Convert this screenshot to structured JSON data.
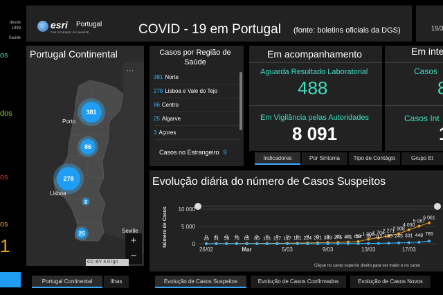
{
  "left_sliver": {
    "text_lines": [
      "desde",
      "1899",
      "Saúde"
    ],
    "label_os": "os",
    "label_dos": "dos",
    "label_os2": "os",
    "big_digit": "1"
  },
  "header": {
    "brand": "esri",
    "brand_country": "Portugal",
    "brand_tagline": "THE SCIENCE OF WHERE",
    "title": "COVID - 19 em Portugal",
    "source": "(fonte: boletins oficiais da DGS)",
    "date_partial": "19/3"
  },
  "map": {
    "title": "Portugal Continental",
    "more_label": "···",
    "clusters": [
      {
        "label": "381"
      },
      {
        "label": "86"
      },
      {
        "label": "278"
      },
      {
        "label": "2"
      },
      {
        "label": "25"
      }
    ],
    "cities": [
      "Porto",
      "Lisboa",
      "Seville"
    ],
    "zoom_in": "+",
    "zoom_out": "−",
    "attribution": "CC BY 4.0 ign",
    "tabs": [
      "Portugal Continental",
      "Ilhas"
    ]
  },
  "regions": {
    "title": "Casos por Região de Saúde",
    "items": [
      {
        "count": "381",
        "name": "Norte"
      },
      {
        "count": "278",
        "name": "Lisboa e Vale do Tejo"
      },
      {
        "count": "86",
        "name": "Centro"
      },
      {
        "count": "25",
        "name": "Algarve"
      },
      {
        "count": "3",
        "name": "Açores"
      }
    ],
    "abroad_label": "Casos no Estrangeiro",
    "abroad_count": "9"
  },
  "acompanhamento": {
    "heading": "Em acompanhamento",
    "item1_label": "Aguarda Resultado Laboratorial",
    "item1_value": "488",
    "item2_label": "Em Vigilância pelas Autoridades",
    "item2_value": "8 091"
  },
  "internados": {
    "heading": "Em inte",
    "item1_label": "Casos",
    "item1_value": "8",
    "item2_label": "Casos Int",
    "item2_value": "1"
  },
  "indicator_tabs": [
    "Indicadores",
    "Por Sintoma",
    "Tipo de Contágio",
    "Grupo Et"
  ],
  "evolution": {
    "title": "Evolução diária do número de Casos Suspeitos",
    "note": "Clique no canto superior direito para ver maior e no canto",
    "tabs": [
      "Evolução de Casos Suspeitos",
      "Evolução de Casos Confirmados",
      "Evolução de Casos Novos"
    ],
    "colors": {
      "suspeitos": "#f0a020",
      "confirmados": "#39b4ff"
    }
  },
  "chart_data": {
    "type": "line",
    "title": "Evolução diária do número de Casos Suspeitos",
    "ylabel": "Número de Casos",
    "xlabel": "",
    "ylim": [
      0,
      10000
    ],
    "yticks": [
      "0",
      "5 000",
      "10 000"
    ],
    "xticks": [
      "26/02",
      "Mar",
      "5/03",
      "9/03",
      "13/03",
      "17/03"
    ],
    "series": [
      {
        "name": "",
        "color": "#f0a020",
        "labels": [
          "25",
          "51",
          "59",
          "70",
          "85",
          "85",
          "101",
          "117",
          "147",
          "181",
          "224",
          "281",
          "339",
          "375",
          "471",
          "637",
          "1 308",
          "1 704",
          "2 271",
          "2 908",
          "4 030",
          "5 067",
          "6 061"
        ],
        "values": [
          25,
          51,
          59,
          70,
          85,
          85,
          101,
          117,
          147,
          181,
          224,
          281,
          339,
          375,
          471,
          637,
          1308,
          1704,
          2271,
          2908,
          4030,
          5067,
          6061
        ]
      },
      {
        "name": "",
        "color": "#39b4ff",
        "labels": [
          "0",
          "0",
          "0",
          "0",
          "0",
          "0",
          "0",
          "0",
          "0",
          "0",
          "0",
          "0",
          "0",
          "30",
          "41",
          "59",
          "78",
          "112",
          "169",
          "245",
          "331",
          "448",
          "785"
        ],
        "values": [
          0,
          0,
          0,
          0,
          0,
          0,
          0,
          0,
          0,
          0,
          0,
          0,
          0,
          30,
          41,
          59,
          78,
          112,
          169,
          245,
          331,
          448,
          785
        ]
      }
    ]
  }
}
